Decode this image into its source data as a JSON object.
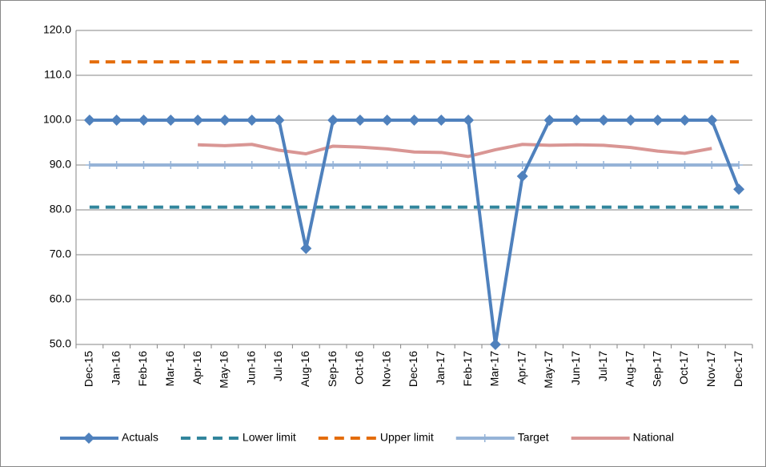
{
  "chart_data": {
    "type": "line",
    "categories": [
      "Dec-15",
      "Jan-16",
      "Feb-16",
      "Mar-16",
      "Apr-16",
      "May-16",
      "Jun-16",
      "Jul-16",
      "Aug-16",
      "Sep-16",
      "Oct-16",
      "Nov-16",
      "Dec-16",
      "Jan-17",
      "Feb-17",
      "Mar-17",
      "Apr-17",
      "May-17",
      "Jun-17",
      "Jul-17",
      "Aug-17",
      "Sep-17",
      "Oct-17",
      "Nov-17",
      "Dec-17"
    ],
    "series": [
      {
        "name": "Actuals",
        "color": "#4f81bd",
        "line_style": "solid",
        "marker": "diamond",
        "values": [
          100,
          100,
          100,
          100,
          100,
          100,
          100,
          100,
          71.4,
          100,
          100,
          100,
          100,
          100,
          100,
          50,
          87.5,
          100,
          100,
          100,
          100,
          100,
          100,
          100,
          84.6
        ]
      },
      {
        "name": "Lower limit",
        "color": "#31859c",
        "line_style": "dashed",
        "marker": "none",
        "values": [
          80.6,
          80.6,
          80.6,
          80.6,
          80.6,
          80.6,
          80.6,
          80.6,
          80.6,
          80.6,
          80.6,
          80.6,
          80.6,
          80.6,
          80.6,
          80.6,
          80.6,
          80.6,
          80.6,
          80.6,
          80.6,
          80.6,
          80.6,
          80.6,
          80.6
        ]
      },
      {
        "name": "Upper limit",
        "color": "#e46c0a",
        "line_style": "dashed",
        "marker": "none",
        "values": [
          113,
          113,
          113,
          113,
          113,
          113,
          113,
          113,
          113,
          113,
          113,
          113,
          113,
          113,
          113,
          113,
          113,
          113,
          113,
          113,
          113,
          113,
          113,
          113,
          113
        ]
      },
      {
        "name": "Target",
        "color": "#95b3d7",
        "line_style": "solid",
        "marker": "plus",
        "values": [
          90,
          90,
          90,
          90,
          90,
          90,
          90,
          90,
          90,
          90,
          90,
          90,
          90,
          90,
          90,
          90,
          90,
          90,
          90,
          90,
          90,
          90,
          90,
          90,
          90
        ]
      },
      {
        "name": "National",
        "color": "#d99694",
        "line_style": "solid",
        "marker": "none",
        "values": [
          null,
          null,
          null,
          null,
          94.5,
          94.3,
          94.6,
          93.3,
          92.5,
          94.2,
          94.0,
          93.6,
          92.9,
          92.8,
          91.9,
          93.4,
          94.6,
          94.4,
          94.5,
          94.4,
          93.9,
          93.1,
          92.6,
          93.7,
          null
        ]
      }
    ],
    "ylim": [
      50,
      120
    ],
    "yticks": [
      {
        "value": 50,
        "label": "50.0"
      },
      {
        "value": 60,
        "label": "60.0"
      },
      {
        "value": 70,
        "label": "70.0"
      },
      {
        "value": 80,
        "label": "80.0"
      },
      {
        "value": 90,
        "label": "90.0"
      },
      {
        "value": 100,
        "label": "100.0"
      },
      {
        "value": 110,
        "label": "110.0"
      },
      {
        "value": 120,
        "label": "120.0"
      }
    ],
    "grid": true,
    "legend": "bottom"
  }
}
